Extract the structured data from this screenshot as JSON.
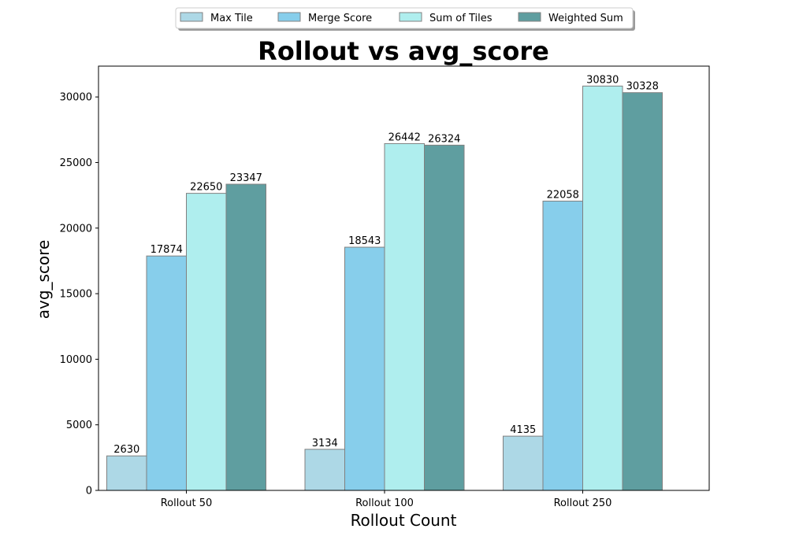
{
  "chart_data": {
    "type": "bar",
    "title": "Rollout vs avg_score",
    "xlabel": "Rollout Count",
    "ylabel": "avg_score",
    "categories": [
      "Rollout 50",
      "Rollout 100",
      "Rollout 250"
    ],
    "series": [
      {
        "name": "Max Tile",
        "color": "#add8e6",
        "values": [
          2630,
          3134,
          4135
        ]
      },
      {
        "name": "Merge Score",
        "color": "#87ceeb",
        "values": [
          17874,
          18543,
          22058
        ]
      },
      {
        "name": "Sum of Tiles",
        "color": "#afeeee",
        "values": [
          22650,
          26442,
          30830
        ]
      },
      {
        "name": "Weighted Sum",
        "color": "#5f9ea0",
        "values": [
          23347,
          26324,
          30328
        ]
      }
    ],
    "yticks": [
      0,
      5000,
      10000,
      15000,
      20000,
      25000,
      30000
    ],
    "ylim": [
      0,
      32350
    ],
    "grid": false,
    "legend_position": "top-center",
    "bar_edge_color": "#808080"
  }
}
